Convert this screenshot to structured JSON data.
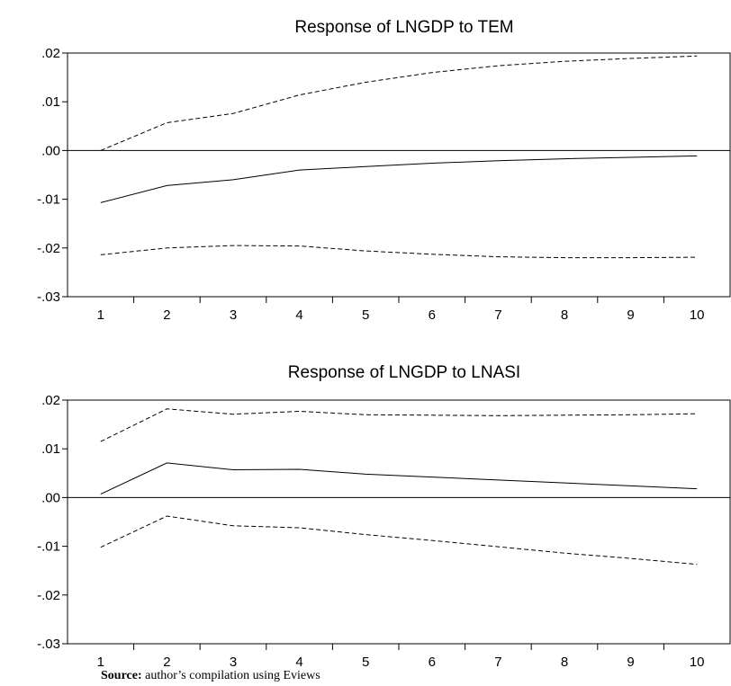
{
  "chart_data": [
    {
      "type": "line",
      "title": "Response of LNGDP to TEM",
      "xlabel": "",
      "ylabel": "",
      "x": [
        1,
        2,
        3,
        4,
        5,
        6,
        7,
        8,
        9,
        10
      ],
      "xlim": [
        0.5,
        10.5
      ],
      "ylim": [
        -0.03,
        0.02
      ],
      "yticks": [
        0.02,
        0.01,
        0.0,
        -0.01,
        -0.02,
        -0.03
      ],
      "yticklabels": [
        ".02",
        ".01",
        ".00",
        "-.01",
        "-.02",
        "-.03"
      ],
      "xticklabels": [
        "1",
        "2",
        "3",
        "4",
        "5",
        "6",
        "7",
        "8",
        "9",
        "10"
      ],
      "grid": false,
      "zero_line": true,
      "series": [
        {
          "style": "solid",
          "values": [
            -0.0107,
            -0.0072,
            -0.006,
            -0.004,
            -0.0033,
            -0.0026,
            -0.0021,
            -0.0017,
            -0.0014,
            -0.0011
          ]
        },
        {
          "style": "dashed",
          "values": [
            0.0,
            0.0057,
            0.0076,
            0.0114,
            0.014,
            0.016,
            0.0174,
            0.0183,
            0.0189,
            0.0194
          ]
        },
        {
          "style": "dashed",
          "values": [
            -0.0214,
            -0.02,
            -0.0195,
            -0.0196,
            -0.0206,
            -0.0213,
            -0.0218,
            -0.022,
            -0.022,
            -0.0219
          ]
        }
      ]
    },
    {
      "type": "line",
      "title": "Response of LNGDP to LNASI",
      "xlabel": "",
      "ylabel": "",
      "x": [
        1,
        2,
        3,
        4,
        5,
        6,
        7,
        8,
        9,
        10
      ],
      "xlim": [
        0.5,
        10.5
      ],
      "ylim": [
        -0.03,
        0.02
      ],
      "yticks": [
        0.02,
        0.01,
        0.0,
        -0.01,
        -0.02,
        -0.03
      ],
      "yticklabels": [
        ".02",
        ".01",
        ".00",
        "-.01",
        "-.02",
        "-.03"
      ],
      "xticklabels": [
        "1",
        "2",
        "3",
        "4",
        "5",
        "6",
        "7",
        "8",
        "9",
        "10"
      ],
      "grid": false,
      "zero_line": true,
      "series": [
        {
          "style": "solid",
          "values": [
            0.0007,
            0.0071,
            0.0057,
            0.0058,
            0.0048,
            0.0042,
            0.0036,
            0.003,
            0.0024,
            0.0018
          ]
        },
        {
          "style": "dashed",
          "values": [
            0.0115,
            0.0182,
            0.0171,
            0.0177,
            0.017,
            0.0169,
            0.0168,
            0.0169,
            0.017,
            0.0172
          ]
        },
        {
          "style": "dashed",
          "values": [
            -0.0102,
            -0.0038,
            -0.0058,
            -0.0062,
            -0.0076,
            -0.0088,
            -0.0101,
            -0.0114,
            -0.0125,
            -0.0137
          ]
        }
      ]
    }
  ],
  "source": {
    "label": "Source:",
    "text": " author’s compilation using Eviews"
  }
}
